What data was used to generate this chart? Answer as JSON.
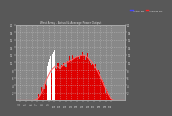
{
  "title": "West Array - Actual & Average Power Output",
  "bg_color": "#585858",
  "plot_bg_color": "#888888",
  "fill_color": "#dd0000",
  "avg_line_color": "#ff6666",
  "legend_actual_color": "#4444ff",
  "legend_avg_color": "#ff2222",
  "ylim": [
    0,
    20
  ],
  "yticks": [
    2,
    4,
    6,
    8,
    10,
    12,
    14,
    16,
    18,
    20
  ],
  "ytick_labels": [
    "2",
    "4",
    "6",
    "8",
    "10",
    "12",
    "14",
    "16",
    "18",
    "20"
  ],
  "xtick_labels": [
    "4",
    "5",
    "6",
    "7",
    "8",
    "9",
    "10",
    "11",
    "12",
    "13",
    "14",
    "15",
    "16",
    "17",
    "18",
    "19",
    "20"
  ],
  "xtick_positions": [
    4,
    9,
    14,
    19,
    24,
    29,
    34,
    39,
    44,
    49,
    54,
    59,
    64,
    69,
    74,
    79,
    84
  ],
  "xlim": [
    0,
    96
  ],
  "n_points": 96,
  "smooth_power": [
    0,
    0,
    0,
    0,
    0,
    0,
    0,
    0,
    0,
    0,
    0,
    0,
    0,
    0,
    0,
    0,
    0.05,
    0.1,
    0.2,
    0.4,
    0.7,
    1.1,
    1.6,
    2.2,
    3.0,
    3.8,
    4.6,
    5.4,
    6.1,
    6.7,
    7.3,
    7.8,
    8.2,
    8.5,
    8.8,
    9.0,
    9.1,
    8.9,
    8.7,
    8.5,
    8.8,
    9.1,
    9.4,
    9.6,
    9.8,
    10.0,
    10.2,
    10.3,
    10.5,
    10.6,
    10.8,
    11.0,
    11.2,
    11.4,
    11.5,
    11.6,
    11.7,
    11.8,
    11.9,
    12.0,
    11.9,
    11.8,
    11.6,
    11.4,
    11.1,
    10.8,
    10.5,
    10.1,
    9.7,
    9.3,
    8.8,
    8.3,
    7.7,
    7.1,
    6.5,
    5.9,
    5.2,
    4.5,
    3.8,
    3.1,
    2.5,
    1.9,
    1.3,
    0.8,
    0.4,
    0.15,
    0.05,
    0,
    0,
    0,
    0,
    0,
    0,
    0,
    0,
    0
  ],
  "noise_seed": 7,
  "noise_scale": 0.6,
  "grid_color": "#cccccc",
  "white_gap_positions": [
    28,
    29,
    30,
    31,
    32,
    33,
    34
  ],
  "tick_color": "#dddddd"
}
